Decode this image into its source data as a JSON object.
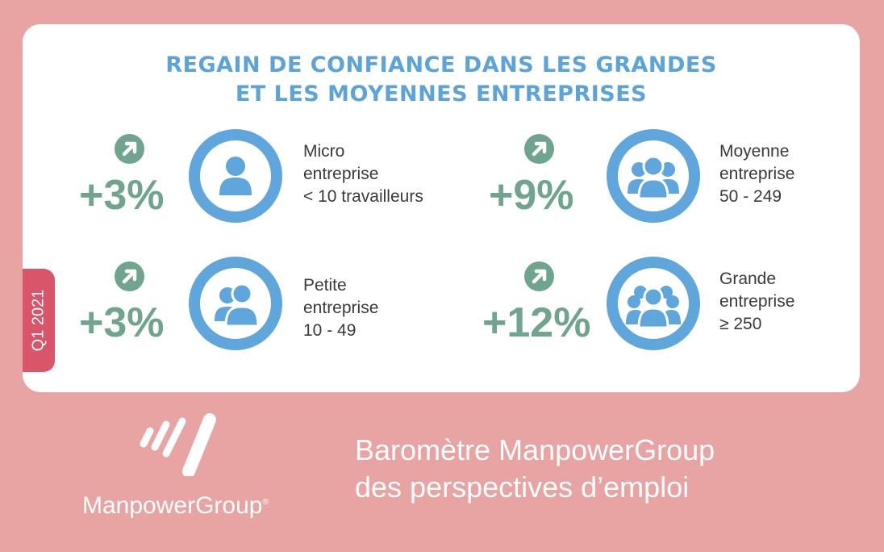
{
  "title": {
    "line1": "REGAIN DE CONFIANCE DANS LES GRANDES",
    "line2": "ET LES MOYENNES ENTREPRISES"
  },
  "period_tab": "Q1 2021",
  "colors": {
    "background": "#e8a3a3",
    "title": "#5ba3d8",
    "growth": "#6fa58e",
    "ring": "#5ea6db",
    "tab": "#d9566a"
  },
  "segments": {
    "micro": {
      "change": "+3%",
      "line1": "Micro",
      "line2": "entreprise",
      "line3": "< 10 travailleurs",
      "icon": "single-person-icon",
      "trend_icon": "arrow-up-right-icon"
    },
    "petite": {
      "change": "+3%",
      "line1": "Petite",
      "line2": "entreprise",
      "line3": "10 - 49",
      "icon": "two-people-icon",
      "trend_icon": "arrow-up-right-icon"
    },
    "moyenne": {
      "change": "+9%",
      "line1": "Moyenne",
      "line2": "entreprise",
      "line3": "50 - 249",
      "icon": "group-people-icon",
      "trend_icon": "arrow-up-right-icon"
    },
    "grande": {
      "change": "+12%",
      "line1": "Grande",
      "line2": "entreprise",
      "line3": "≥ 250",
      "icon": "large-group-people-icon",
      "trend_icon": "arrow-up-right-icon"
    }
  },
  "footer": {
    "brand": "ManpowerGroup",
    "brand_mark": "®",
    "barometer_line1": "Baromètre ManpowerGroup",
    "barometer_line2": "des perspectives d’emploi"
  }
}
